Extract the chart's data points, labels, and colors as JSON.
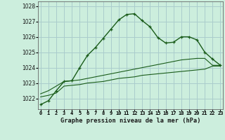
{
  "title": "Graphe pression niveau de la mer (hPa)",
  "background_color": "#cceedd",
  "grid_color": "#aacccc",
  "line_color": "#1a5c1a",
  "x_labels": [
    "0",
    "1",
    "2",
    "3",
    "4",
    "5",
    "6",
    "7",
    "8",
    "9",
    "10",
    "11",
    "12",
    "13",
    "14",
    "15",
    "16",
    "17",
    "18",
    "19",
    "20",
    "21",
    "22",
    "23"
  ],
  "ylim": [
    1021.3,
    1028.3
  ],
  "xlim": [
    -0.3,
    23.3
  ],
  "yticks": [
    1022,
    1023,
    1024,
    1025,
    1026,
    1027,
    1028
  ],
  "series1": [
    1021.6,
    1021.85,
    1022.5,
    1023.1,
    1023.15,
    1024.0,
    1024.8,
    1025.3,
    1025.9,
    1026.5,
    1027.1,
    1027.45,
    1027.5,
    1027.05,
    1026.65,
    1025.95,
    1025.6,
    1025.65,
    1026.0,
    1026.0,
    1025.8,
    1025.0,
    1024.55,
    1024.15
  ],
  "series2": [
    1022.3,
    1022.5,
    1022.8,
    1023.1,
    1023.15,
    1023.2,
    1023.3,
    1023.4,
    1023.5,
    1023.6,
    1023.7,
    1023.8,
    1023.9,
    1024.0,
    1024.1,
    1024.2,
    1024.3,
    1024.4,
    1024.5,
    1024.55,
    1024.6,
    1024.6,
    1024.15,
    1024.15
  ],
  "series3": [
    1022.1,
    1022.2,
    1022.35,
    1022.8,
    1022.85,
    1022.9,
    1023.0,
    1023.05,
    1023.1,
    1023.2,
    1023.3,
    1023.35,
    1023.4,
    1023.5,
    1023.55,
    1023.6,
    1023.65,
    1023.7,
    1023.75,
    1023.8,
    1023.85,
    1023.9,
    1024.1,
    1024.1
  ]
}
